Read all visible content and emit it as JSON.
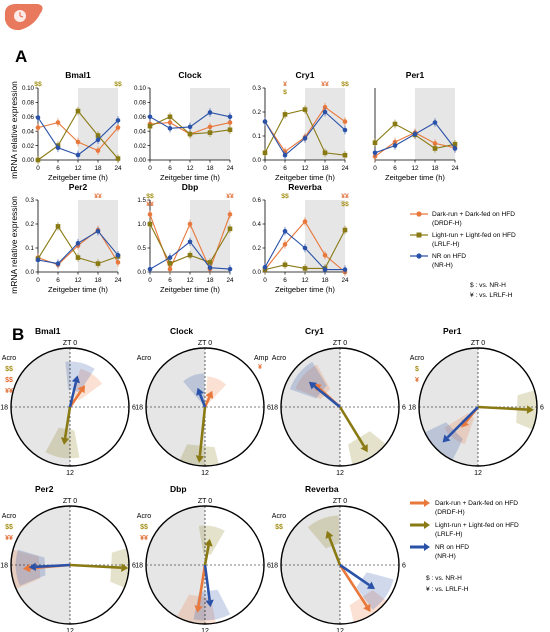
{
  "figure": {
    "panel_a_label": "A",
    "panel_b_label": "B",
    "shared_y_label": "mRNA relative expression",
    "zt0_label": "ZT 0",
    "acro_label": "Acro",
    "amp_label": "Amp"
  },
  "colors": {
    "drdf": "#e8783c",
    "lrlf": "#8a7a14",
    "nr": "#2a52a8",
    "dark_shade": "#e6e6e6",
    "stat_nr": "#a49018",
    "stat_lrlf": "#e06a30",
    "liver": "#e8795c"
  },
  "legend": {
    "items": [
      {
        "key": "drdf",
        "line1": "Dark-run + Dark-fed on HFD",
        "line2": "(DRDF-H)"
      },
      {
        "key": "lrlf",
        "line1": "Light-run + Light-fed on HFD",
        "line2": "(LRLF-H)"
      },
      {
        "key": "nr",
        "line1": "NR on HFD",
        "line2": "(NR-H)"
      }
    ],
    "note1": "$ : vs. NR-H",
    "note2": "¥ : vs. LRLF-H"
  },
  "chart_data": [
    {
      "type": "line",
      "title": "Bmal1",
      "xlabel": "Zeitgeber time (h)",
      "x": [
        0,
        6,
        12,
        18,
        24
      ],
      "ylim": [
        0,
        0.1
      ],
      "yticks": [
        "0.00",
        "0.02",
        "0.04",
        "0.06",
        "0.08",
        "0.10"
      ],
      "series": [
        {
          "name": "DRDF-H",
          "values": [
            0.045,
            0.052,
            0.025,
            0.013,
            0.045
          ]
        },
        {
          "name": "LRLF-H",
          "values": [
            0.0,
            0.02,
            0.068,
            0.034,
            0.002
          ]
        },
        {
          "name": "NR-H",
          "values": [
            0.059,
            0.017,
            0.007,
            0.028,
            0.055
          ]
        }
      ],
      "annotations": [
        {
          "text": "$$",
          "x": 0
        },
        {
          "text": "$$",
          "x": 24
        }
      ]
    },
    {
      "type": "line",
      "title": "Clock",
      "xlabel": "Zeitgeber time (h)",
      "x": [
        0,
        6,
        12,
        18,
        24
      ],
      "ylim": [
        0,
        0.1
      ],
      "yticks": [
        "0.00",
        "0.02",
        "0.04",
        "0.06",
        "0.08",
        "0.10"
      ],
      "series": [
        {
          "name": "DRDF-H",
          "values": [
            0.05,
            0.052,
            0.036,
            0.046,
            0.052
          ]
        },
        {
          "name": "LRLF-H",
          "values": [
            0.047,
            0.06,
            0.036,
            0.038,
            0.042
          ]
        },
        {
          "name": "NR-H",
          "values": [
            0.06,
            0.044,
            0.046,
            0.066,
            0.06
          ]
        }
      ],
      "annotations": []
    },
    {
      "type": "line",
      "title": "Cry1",
      "xlabel": "Zeitgeber time (h)",
      "x": [
        0,
        6,
        12,
        18,
        24
      ],
      "ylim": [
        0,
        0.3
      ],
      "yticks": [
        "0.0",
        "0.1",
        "0.2",
        "0.3"
      ],
      "series": [
        {
          "name": "DRDF-H",
          "values": [
            0.16,
            0.035,
            0.095,
            0.22,
            0.16
          ]
        },
        {
          "name": "LRLF-H",
          "values": [
            0.03,
            0.19,
            0.21,
            0.03,
            0.02
          ]
        },
        {
          "name": "NR-H",
          "values": [
            0.16,
            0.02,
            0.09,
            0.2,
            0.125
          ]
        }
      ],
      "annotations": [
        {
          "text": "¥",
          "x": 6
        },
        {
          "text": "$",
          "x": 6
        },
        {
          "text": "¥¥",
          "x": 18
        },
        {
          "text": "$$",
          "x": 24
        }
      ]
    },
    {
      "type": "line",
      "title": "Per1",
      "xlabel": "Zeitgeber time (h)",
      "x": [
        0,
        6,
        12,
        18,
        24
      ],
      "ylim": [
        0,
        0.1
      ],
      "yticks": [],
      "series": [
        {
          "name": "DRDF-H",
          "values": [
            0.005,
            0.025,
            0.038,
            0.023,
            0.017
          ]
        },
        {
          "name": "LRLF-H",
          "values": [
            0.024,
            0.05,
            0.035,
            0.016,
            0.022
          ]
        },
        {
          "name": "NR-H",
          "values": [
            0.01,
            0.02,
            0.036,
            0.052,
            0.016
          ]
        }
      ],
      "annotations": []
    },
    {
      "type": "line",
      "title": "Per2",
      "xlabel": "Zeitgeber time (h)",
      "x": [
        0,
        6,
        12,
        18,
        24
      ],
      "ylim": [
        0,
        0.3
      ],
      "yticks": [
        "0.0",
        "0.1",
        "0.2",
        "0.3"
      ],
      "series": [
        {
          "name": "DRDF-H",
          "values": [
            0.06,
            0.03,
            0.11,
            0.175,
            0.04
          ]
        },
        {
          "name": "LRLF-H",
          "values": [
            0.055,
            0.19,
            0.06,
            0.035,
            0.065
          ]
        },
        {
          "name": "NR-H",
          "values": [
            0.05,
            0.035,
            0.12,
            0.17,
            0.07
          ]
        }
      ],
      "annotations": [
        {
          "text": "¥¥",
          "x": 18
        }
      ]
    },
    {
      "type": "line",
      "title": "Dbp",
      "xlabel": "Zeitgeber time (h)",
      "x": [
        0,
        6,
        12,
        18,
        24
      ],
      "ylim": [
        0,
        1.5
      ],
      "yticks": [
        "0.0",
        "0.5",
        "1.0",
        "1.5"
      ],
      "series": [
        {
          "name": "DRDF-H",
          "values": [
            1.2,
            0.06,
            1.0,
            0.06,
            1.2
          ]
        },
        {
          "name": "LRLF-H",
          "values": [
            1.0,
            0.18,
            0.35,
            0.2,
            0.9
          ]
        },
        {
          "name": "NR-H",
          "values": [
            0.06,
            0.3,
            0.63,
            0.09,
            0.06
          ]
        }
      ],
      "annotations": [
        {
          "text": "$$",
          "x": 0
        },
        {
          "text": "¥¥",
          "x": 0
        },
        {
          "text": "¥¥",
          "x": 24
        }
      ]
    },
    {
      "type": "line",
      "title": "Reverba",
      "xlabel": "Zeitgeber time (h)",
      "x": [
        0,
        6,
        12,
        18,
        24
      ],
      "ylim": [
        0,
        0.6
      ],
      "yticks": [
        "0.0",
        "0.2",
        "0.4",
        "0.6"
      ],
      "series": [
        {
          "name": "DRDF-H",
          "values": [
            0.02,
            0.23,
            0.42,
            0.14,
            0.0
          ]
        },
        {
          "name": "LRLF-H",
          "values": [
            0.02,
            0.06,
            0.03,
            0.03,
            0.35
          ]
        },
        {
          "name": "NR-H",
          "values": [
            0.04,
            0.34,
            0.2,
            0.02,
            0.02
          ]
        }
      ],
      "annotations": [
        {
          "text": "$$",
          "x": 6
        },
        {
          "text": "¥¥",
          "x": 24
        },
        {
          "text": "$$",
          "x": 24
        }
      ]
    }
  ],
  "polar": [
    {
      "title": "Bmal1",
      "marks": [
        {
          "text": "Acro",
          "color": "black"
        },
        {
          "text": "$$",
          "color": "lrlf"
        },
        {
          "text": "$$",
          "color": "drdf"
        },
        {
          "text": "¥¥",
          "color": "drdf"
        }
      ],
      "vectors": [
        {
          "series": "DRDF-H",
          "angle_h": 2.3,
          "len": 0.45
        },
        {
          "series": "LRLF-H",
          "angle_h": 12.6,
          "len": 0.65
        },
        {
          "series": "NR-H",
          "angle_h": 0.9,
          "len": 0.55
        }
      ]
    },
    {
      "title": "Clock",
      "marks": [
        {
          "text": "Acro",
          "color": "black"
        },
        {
          "text": "Amp",
          "color": "black"
        },
        {
          "text": "¥",
          "color": "drdf"
        }
      ],
      "vectors": [
        {
          "series": "DRDF-H",
          "angle_h": 1.6,
          "len": 0.3
        },
        {
          "series": "LRLF-H",
          "angle_h": 12.4,
          "len": 0.95
        },
        {
          "series": "NR-H",
          "angle_h": 22.6,
          "len": 0.35
        }
      ]
    },
    {
      "title": "Cry1",
      "marks": [
        {
          "text": "Acro",
          "color": "black"
        }
      ],
      "vectors": [
        {
          "series": "DRDF-H",
          "angle_h": 20.8,
          "len": 0.6
        },
        {
          "series": "LRLF-H",
          "angle_h": 9.9,
          "len": 0.9
        },
        {
          "series": "NR-H",
          "angle_h": 20.6,
          "len": 0.68
        }
      ]
    },
    {
      "title": "Per1",
      "marks": [
        {
          "text": "Acro",
          "color": "black"
        },
        {
          "text": "$",
          "color": "lrlf"
        },
        {
          "text": "¥",
          "color": "drdf"
        }
      ],
      "vectors": [
        {
          "series": "DRDF-H",
          "angle_h": 14.6,
          "len": 0.45
        },
        {
          "series": "LRLF-H",
          "angle_h": 6.2,
          "len": 0.95
        },
        {
          "series": "NR-H",
          "angle_h": 15.0,
          "len": 0.85
        }
      ]
    },
    {
      "title": "Per2",
      "marks": [
        {
          "text": "Acro",
          "color": "black"
        },
        {
          "text": "$$",
          "color": "lrlf"
        },
        {
          "text": "¥¥",
          "color": "drdf"
        }
      ],
      "vectors": [
        {
          "series": "DRDF-H",
          "angle_h": 17.7,
          "len": 0.8
        },
        {
          "series": "LRLF-H",
          "angle_h": 6.2,
          "len": 0.99
        },
        {
          "series": "NR-H",
          "angle_h": 17.8,
          "len": 0.7
        }
      ]
    },
    {
      "title": "Dbp",
      "marks": [
        {
          "text": "Acro",
          "color": "black"
        },
        {
          "text": "$$",
          "color": "lrlf"
        },
        {
          "text": "¥¥",
          "color": "drdf"
        }
      ],
      "vectors": [
        {
          "series": "DRDF-H",
          "angle_h": 12.6,
          "len": 0.82
        },
        {
          "series": "LRLF-H",
          "angle_h": 0.7,
          "len": 0.45
        },
        {
          "series": "NR-H",
          "angle_h": 11.5,
          "len": 0.72
        }
      ]
    },
    {
      "title": "Reverba",
      "marks": [
        {
          "text": "Acro",
          "color": "black"
        },
        {
          "text": "$$",
          "color": "lrlf"
        }
      ],
      "vectors": [
        {
          "series": "DRDF-H",
          "angle_h": 9.8,
          "len": 0.95
        },
        {
          "series": "LRLF-H",
          "angle_h": 22.6,
          "len": 0.62
        },
        {
          "series": "NR-H",
          "angle_h": 8.3,
          "len": 0.72
        }
      ]
    }
  ]
}
